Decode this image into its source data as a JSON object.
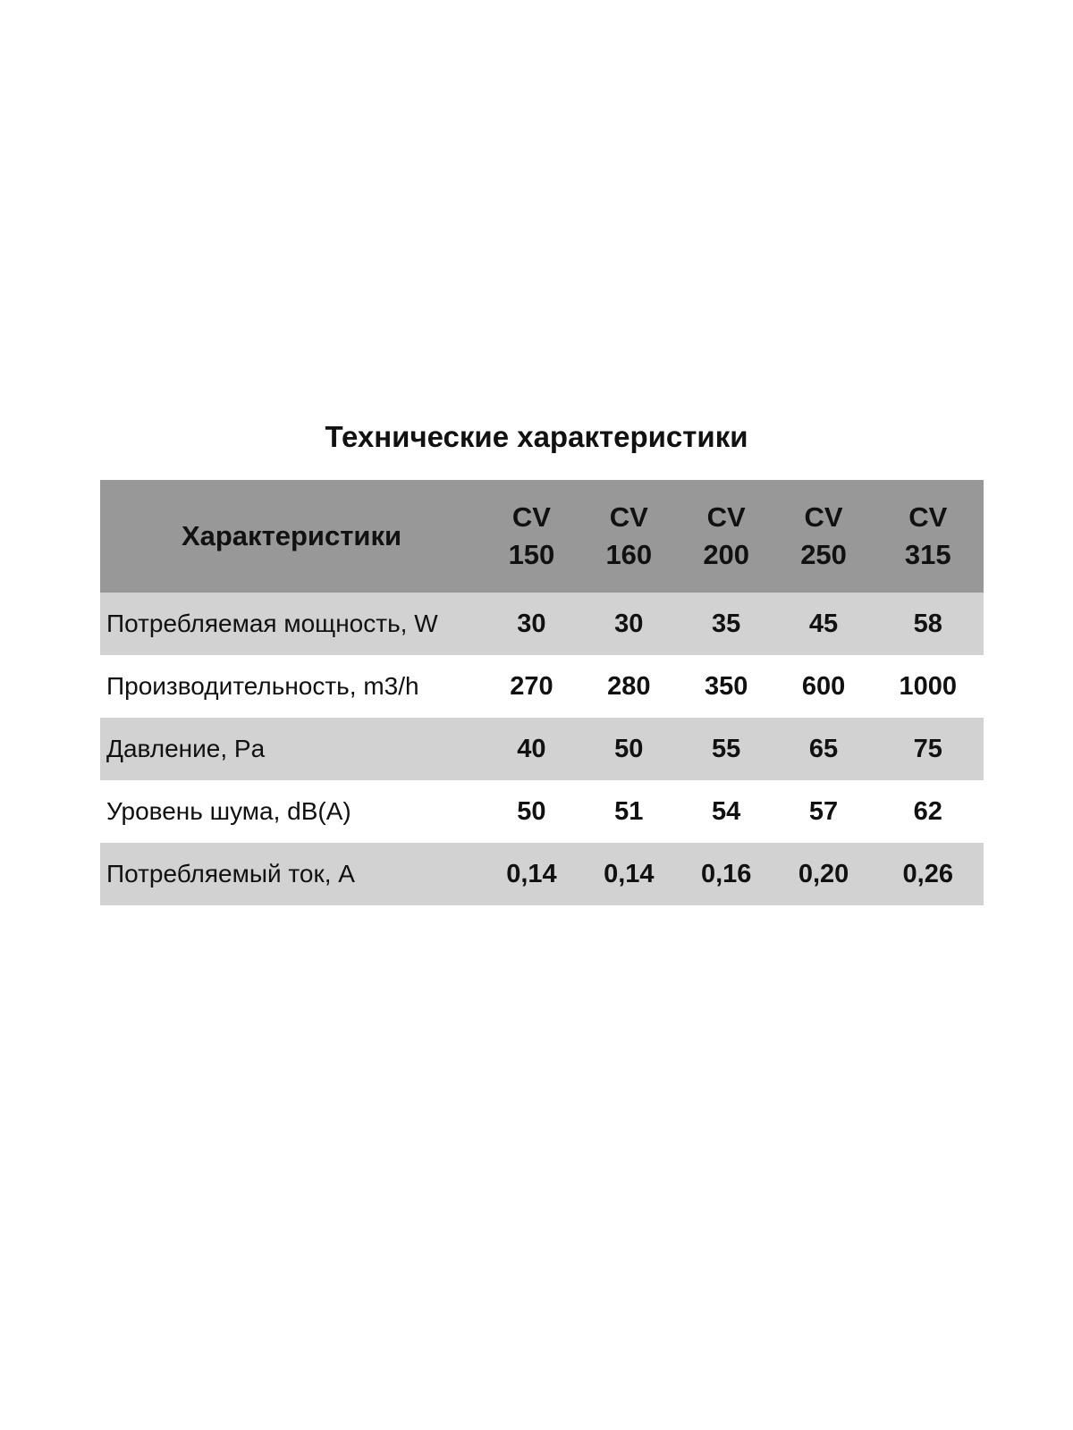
{
  "title": "Технические характеристики",
  "table": {
    "header_label": "Характеристики",
    "models": [
      {
        "line1": "CV",
        "line2": "150"
      },
      {
        "line1": "CV",
        "line2": "160"
      },
      {
        "line1": "CV",
        "line2": "200"
      },
      {
        "line1": "CV",
        "line2": "250"
      },
      {
        "line1": "CV",
        "line2": "315"
      }
    ],
    "rows": [
      {
        "label": "Потребляемая мощность, W",
        "values": [
          "30",
          "30",
          "35",
          "45",
          "58"
        ]
      },
      {
        "label": "Производительность, m3/h",
        "values": [
          "270",
          "280",
          "350",
          "600",
          "1000"
        ]
      },
      {
        "label": "Давление, Pa",
        "values": [
          "40",
          "50",
          "55",
          "65",
          "75"
        ]
      },
      {
        "label": "Уровень шума, dB(A)",
        "values": [
          "50",
          "51",
          "54",
          "57",
          "62"
        ]
      },
      {
        "label": "Потребляемый ток, A",
        "values": [
          "0,14",
          "0,14",
          "0,16",
          "0,20",
          "0,26"
        ]
      }
    ]
  },
  "colors": {
    "header_bg": "#989898",
    "stripe_bg": "#d2d2d2"
  }
}
